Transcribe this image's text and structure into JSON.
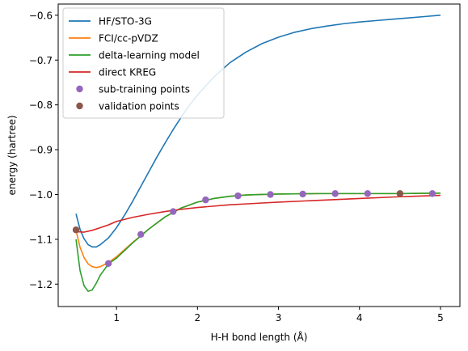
{
  "chart_data": {
    "type": "line",
    "title": "",
    "xlabel": "H-H bond length (Å)",
    "ylabel": "energy (hartree)",
    "xlim": [
      0.28,
      5.24
    ],
    "ylim": [
      -1.25,
      -0.575
    ],
    "xticks": [
      1,
      2,
      3,
      4,
      5
    ],
    "yticks": [
      -1.2,
      -1.1,
      -1.0,
      -0.9,
      -0.8,
      -0.7,
      -0.6
    ],
    "grid": false,
    "legend_position": "upper-left",
    "series": [
      {
        "name": "HF/STO-3G",
        "kind": "line",
        "color": "#1f77b4",
        "points": [
          [
            0.5,
            -1.043
          ],
          [
            0.55,
            -1.078
          ],
          [
            0.6,
            -1.099
          ],
          [
            0.65,
            -1.112
          ],
          [
            0.7,
            -1.117
          ],
          [
            0.75,
            -1.117
          ],
          [
            0.8,
            -1.112
          ],
          [
            0.9,
            -1.097
          ],
          [
            1.0,
            -1.074
          ],
          [
            1.1,
            -1.046
          ],
          [
            1.2,
            -1.015
          ],
          [
            1.3,
            -0.982
          ],
          [
            1.4,
            -0.949
          ],
          [
            1.5,
            -0.916
          ],
          [
            1.6,
            -0.885
          ],
          [
            1.7,
            -0.855
          ],
          [
            1.8,
            -0.827
          ],
          [
            1.9,
            -0.801
          ],
          [
            2.0,
            -0.778
          ],
          [
            2.2,
            -0.738
          ],
          [
            2.4,
            -0.706
          ],
          [
            2.6,
            -0.682
          ],
          [
            2.8,
            -0.663
          ],
          [
            3.0,
            -0.649
          ],
          [
            3.2,
            -0.638
          ],
          [
            3.4,
            -0.63
          ],
          [
            3.6,
            -0.624
          ],
          [
            3.8,
            -0.619
          ],
          [
            4.0,
            -0.615
          ],
          [
            4.2,
            -0.612
          ],
          [
            4.4,
            -0.609
          ],
          [
            4.6,
            -0.606
          ],
          [
            4.8,
            -0.603
          ],
          [
            5.0,
            -0.6
          ]
        ]
      },
      {
        "name": "FCI/cc-pVDZ",
        "kind": "line",
        "color": "#ff7f0e",
        "points": [
          [
            0.5,
            -1.08
          ],
          [
            0.55,
            -1.118
          ],
          [
            0.6,
            -1.141
          ],
          [
            0.65,
            -1.155
          ],
          [
            0.7,
            -1.161
          ],
          [
            0.75,
            -1.163
          ],
          [
            0.8,
            -1.161
          ],
          [
            0.9,
            -1.152
          ],
          [
            1.0,
            -1.139
          ],
          [
            1.2,
            -1.107
          ],
          [
            1.4,
            -1.077
          ],
          [
            1.6,
            -1.05
          ],
          [
            1.8,
            -1.03
          ],
          [
            2.0,
            -1.017
          ],
          [
            2.2,
            -1.009
          ],
          [
            2.4,
            -1.004
          ],
          [
            2.6,
            -1.001
          ],
          [
            2.8,
            -1.0
          ],
          [
            3.0,
            -0.999
          ],
          [
            3.5,
            -0.998
          ],
          [
            4.0,
            -0.998
          ],
          [
            4.5,
            -0.998
          ],
          [
            5.0,
            -0.997
          ]
        ]
      },
      {
        "name": "delta-learning model",
        "kind": "line",
        "color": "#2ca02c",
        "points": [
          [
            0.5,
            -1.1
          ],
          [
            0.55,
            -1.17
          ],
          [
            0.6,
            -1.204
          ],
          [
            0.65,
            -1.216
          ],
          [
            0.7,
            -1.213
          ],
          [
            0.75,
            -1.198
          ],
          [
            0.8,
            -1.18
          ],
          [
            0.9,
            -1.155
          ],
          [
            1.0,
            -1.142
          ],
          [
            1.2,
            -1.108
          ],
          [
            1.4,
            -1.077
          ],
          [
            1.6,
            -1.05
          ],
          [
            1.8,
            -1.03
          ],
          [
            2.0,
            -1.017
          ],
          [
            2.2,
            -1.009
          ],
          [
            2.4,
            -1.004
          ],
          [
            2.6,
            -1.001
          ],
          [
            2.8,
            -1.0
          ],
          [
            3.0,
            -0.999
          ],
          [
            3.5,
            -0.998
          ],
          [
            4.0,
            -0.998
          ],
          [
            4.5,
            -0.998
          ],
          [
            5.0,
            -0.997
          ]
        ]
      },
      {
        "name": "direct KREG",
        "kind": "line",
        "color": "#d62728",
        "points": [
          [
            0.5,
            -1.083
          ],
          [
            0.6,
            -1.084
          ],
          [
            0.7,
            -1.08
          ],
          [
            0.8,
            -1.074
          ],
          [
            0.9,
            -1.068
          ],
          [
            1.0,
            -1.06
          ],
          [
            1.2,
            -1.051
          ],
          [
            1.4,
            -1.044
          ],
          [
            1.6,
            -1.038
          ],
          [
            1.8,
            -1.033
          ],
          [
            2.0,
            -1.029
          ],
          [
            2.2,
            -1.026
          ],
          [
            2.4,
            -1.023
          ],
          [
            2.6,
            -1.021
          ],
          [
            2.8,
            -1.019
          ],
          [
            3.0,
            -1.017
          ],
          [
            3.5,
            -1.013
          ],
          [
            4.0,
            -1.009
          ],
          [
            4.5,
            -1.005
          ],
          [
            5.0,
            -1.002
          ]
        ]
      },
      {
        "name": "sub-training points",
        "kind": "scatter",
        "color": "#9467bd",
        "points": [
          [
            0.9,
            -1.154
          ],
          [
            1.3,
            -1.089
          ],
          [
            1.7,
            -1.038
          ],
          [
            2.1,
            -1.012
          ],
          [
            2.5,
            -1.003
          ],
          [
            2.9,
            -1.0
          ],
          [
            3.3,
            -0.999
          ],
          [
            3.7,
            -0.998
          ],
          [
            4.1,
            -0.998
          ],
          [
            4.9,
            -0.998
          ]
        ]
      },
      {
        "name": "validation points",
        "kind": "scatter",
        "color": "#8c564b",
        "points": [
          [
            0.5,
            -1.079
          ],
          [
            4.5,
            -0.998
          ]
        ]
      }
    ]
  }
}
